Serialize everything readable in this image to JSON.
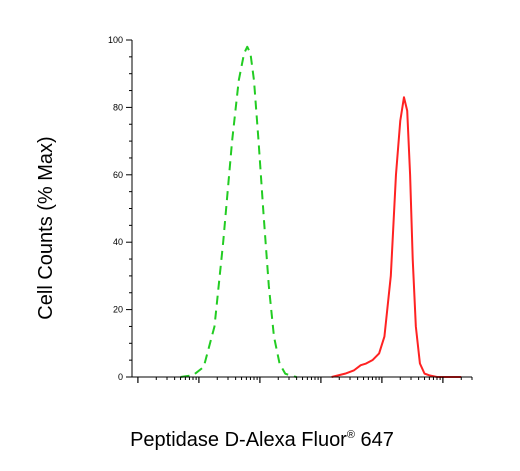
{
  "chart_data": {
    "type": "line",
    "title": "",
    "xlabel": "Peptidase D-Alexa Fluor",
    "xlabel_sup": "®",
    "xlabel_suffix": " 647",
    "ylabel": "Cell Counts (% Max)",
    "x_scale": "log",
    "xlim": [
      0.8,
      300000
    ],
    "ylim": [
      0,
      100
    ],
    "y_ticks": [
      0,
      20,
      40,
      60,
      80,
      100
    ],
    "y_tick_labels": [
      "0",
      "20",
      "40",
      "60",
      "80",
      "100"
    ],
    "grid": false,
    "legend": "none",
    "series": [
      {
        "color": "#22cc22",
        "style": "dashed",
        "x": [
          5,
          8,
          12,
          18,
          25,
          35,
          45,
          55,
          62,
          70,
          80,
          95,
          115,
          140,
          170,
          210,
          260,
          330,
          400
        ],
        "y": [
          0,
          0.5,
          3,
          15,
          40,
          70,
          88,
          96,
          98,
          96,
          88,
          70,
          48,
          27,
          12,
          4,
          1,
          0.3,
          0
        ]
      },
      {
        "color": "#ff2222",
        "style": "solid",
        "x": [
          1500,
          2500,
          3500,
          4500,
          5500,
          7000,
          9000,
          11000,
          14000,
          17000,
          20000,
          23000,
          26000,
          29000,
          32000,
          36000,
          42000,
          50000,
          60000,
          80000,
          120000,
          200000
        ],
        "y": [
          0,
          1,
          2,
          3.5,
          4,
          5,
          7,
          12,
          30,
          60,
          76,
          83,
          79,
          60,
          35,
          15,
          4,
          1,
          0.5,
          0,
          0,
          0
        ]
      }
    ]
  }
}
